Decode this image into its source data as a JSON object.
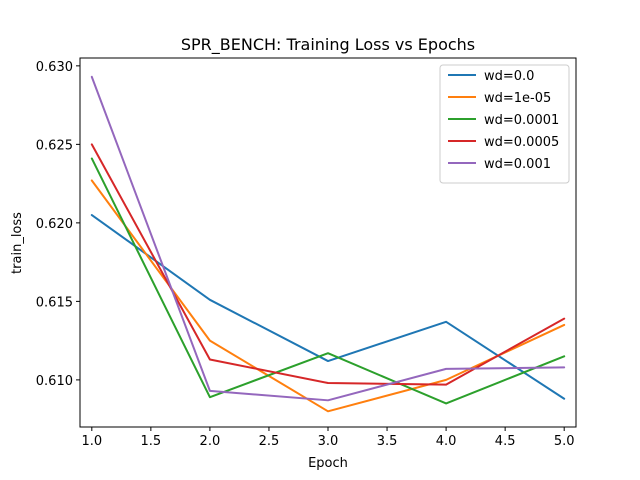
{
  "chart_data": {
    "type": "line",
    "title": "SPR_BENCH: Training Loss vs Epochs",
    "xlabel": "Epoch",
    "ylabel": "train_loss",
    "x": [
      1.0,
      2.0,
      3.0,
      4.0,
      5.0
    ],
    "xlim": [
      0.9,
      5.1
    ],
    "ylim": [
      0.607,
      0.6305
    ],
    "xticks": [
      1.0,
      1.5,
      2.0,
      2.5,
      3.0,
      3.5,
      4.0,
      4.5,
      5.0
    ],
    "xtick_labels": [
      "1.0",
      "1.5",
      "2.0",
      "2.5",
      "3.0",
      "3.5",
      "4.0",
      "4.5",
      "5.0"
    ],
    "yticks": [
      0.61,
      0.615,
      0.62,
      0.625,
      0.63
    ],
    "ytick_labels": [
      "0.610",
      "0.615",
      "0.620",
      "0.625",
      "0.630"
    ],
    "grid": false,
    "legend_position": "top-right",
    "series": [
      {
        "name": "wd=0.0",
        "color": "#1f77b4",
        "values": [
          0.6205,
          0.6151,
          0.6112,
          0.6137,
          0.6088
        ]
      },
      {
        "name": "wd=1e-05",
        "color": "#ff7f0e",
        "values": [
          0.6227,
          0.6125,
          0.608,
          0.61,
          0.6135
        ]
      },
      {
        "name": "wd=0.0001",
        "color": "#2ca02c",
        "values": [
          0.6241,
          0.6089,
          0.6117,
          0.6085,
          0.6115
        ]
      },
      {
        "name": "wd=0.0005",
        "color": "#d62728",
        "values": [
          0.625,
          0.6113,
          0.6098,
          0.6097,
          0.6139
        ]
      },
      {
        "name": "wd=0.001",
        "color": "#9467bd",
        "values": [
          0.6293,
          0.6093,
          0.6087,
          0.6107,
          0.6108
        ]
      }
    ]
  }
}
